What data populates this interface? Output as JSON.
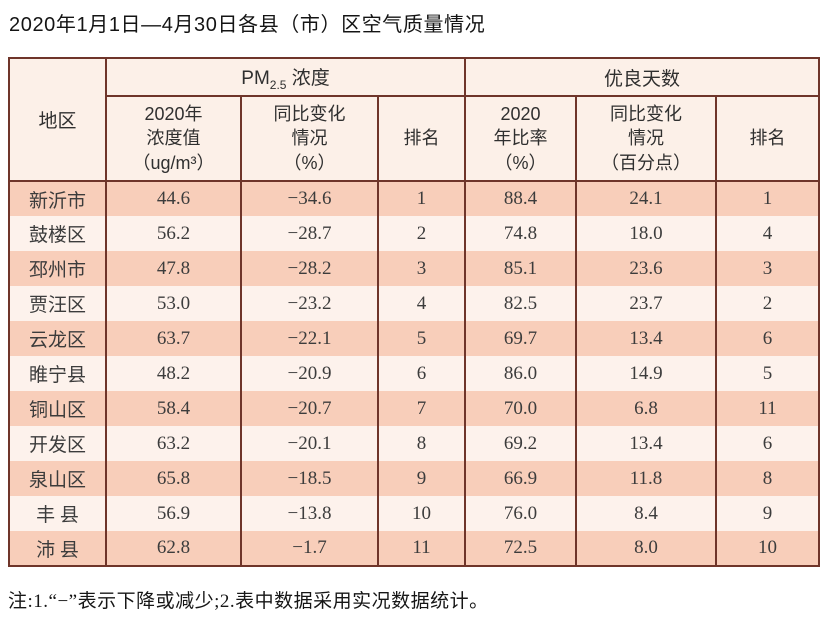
{
  "title": "2020年1月1日—4月30日各县（市）区空气质量情况",
  "footnote": "注:1.“−”表示下降或减少;2.表中数据采用实况数据统计。",
  "colors": {
    "border": "#6f352a",
    "row_shade": "#f8ceba",
    "row_plain": "#fdf2ec",
    "header_bg": "#fcf0e8"
  },
  "table": {
    "header": {
      "region": "地区",
      "pm_group": {
        "prefix": "PM",
        "sub": "2.5",
        "suffix": " 浓度"
      },
      "good_group": "优良天数",
      "pm_value": {
        "l1": "2020年",
        "l2": "浓度值",
        "l3": "（ug/m³）"
      },
      "pm_change": {
        "l1": "同比变化",
        "l2": "情况",
        "l3": "（%）"
      },
      "pm_rank": "排名",
      "good_rate": {
        "l1": "2020",
        "l2": "年比率",
        "l3": "（%）"
      },
      "good_change": {
        "l1": "同比变化",
        "l2": "情况",
        "l3": "（百分点）"
      },
      "good_rank": "排名"
    },
    "row_keys": [
      "region",
      "pm_value",
      "pm_change",
      "pm_rank",
      "good_rate",
      "good_change",
      "good_rank"
    ],
    "rows": [
      {
        "region": "新沂市",
        "pm_value": "44.6",
        "pm_change": "−34.6",
        "pm_rank": "1",
        "good_rate": "88.4",
        "good_change": "24.1",
        "good_rank": "1"
      },
      {
        "region": "鼓楼区",
        "pm_value": "56.2",
        "pm_change": "−28.7",
        "pm_rank": "2",
        "good_rate": "74.8",
        "good_change": "18.0",
        "good_rank": "4"
      },
      {
        "region": "邳州市",
        "pm_value": "47.8",
        "pm_change": "−28.2",
        "pm_rank": "3",
        "good_rate": "85.1",
        "good_change": "23.6",
        "good_rank": "3"
      },
      {
        "region": "贾汪区",
        "pm_value": "53.0",
        "pm_change": "−23.2",
        "pm_rank": "4",
        "good_rate": "82.5",
        "good_change": "23.7",
        "good_rank": "2"
      },
      {
        "region": "云龙区",
        "pm_value": "63.7",
        "pm_change": "−22.1",
        "pm_rank": "5",
        "good_rate": "69.7",
        "good_change": "13.4",
        "good_rank": "6"
      },
      {
        "region": "睢宁县",
        "pm_value": "48.2",
        "pm_change": "−20.9",
        "pm_rank": "6",
        "good_rate": "86.0",
        "good_change": "14.9",
        "good_rank": "5"
      },
      {
        "region": "铜山区",
        "pm_value": "58.4",
        "pm_change": "−20.7",
        "pm_rank": "7",
        "good_rate": "70.0",
        "good_change": "6.8",
        "good_rank": "11"
      },
      {
        "region": "开发区",
        "pm_value": "63.2",
        "pm_change": "−20.1",
        "pm_rank": "8",
        "good_rate": "69.2",
        "good_change": "13.4",
        "good_rank": "6"
      },
      {
        "region": "泉山区",
        "pm_value": "65.8",
        "pm_change": "−18.5",
        "pm_rank": "9",
        "good_rate": "66.9",
        "good_change": "11.8",
        "good_rank": "8"
      },
      {
        "region": "丰 县",
        "pm_value": "56.9",
        "pm_change": "−13.8",
        "pm_rank": "10",
        "good_rate": "76.0",
        "good_change": "8.4",
        "good_rank": "9"
      },
      {
        "region": "沛 县",
        "pm_value": "62.8",
        "pm_change": "−1.7",
        "pm_rank": "11",
        "good_rate": "72.5",
        "good_change": "8.0",
        "good_rank": "10"
      }
    ]
  }
}
